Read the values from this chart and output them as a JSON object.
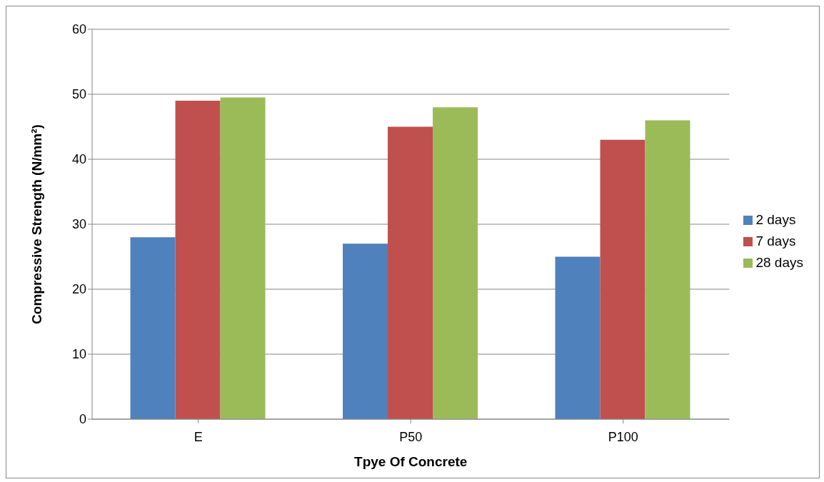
{
  "chart_data": {
    "type": "bar",
    "xlabel": "Tpye Of Concrete",
    "ylabel": "Compressive Strength (N/mm²)",
    "categories": [
      "E",
      "P50",
      "P100"
    ],
    "series": [
      {
        "name": "2 days",
        "color": "#4f81bd",
        "values": [
          28,
          27,
          25
        ]
      },
      {
        "name": "7 days",
        "color": "#c0504d",
        "values": [
          49,
          45,
          43
        ]
      },
      {
        "name": "28 days",
        "color": "#9bbb59",
        "values": [
          49.5,
          48,
          46
        ]
      }
    ],
    "ylim": [
      0,
      60
    ],
    "yticks": [
      0,
      10,
      20,
      30,
      40,
      50,
      60
    ],
    "grid": "y",
    "legend": "right"
  }
}
